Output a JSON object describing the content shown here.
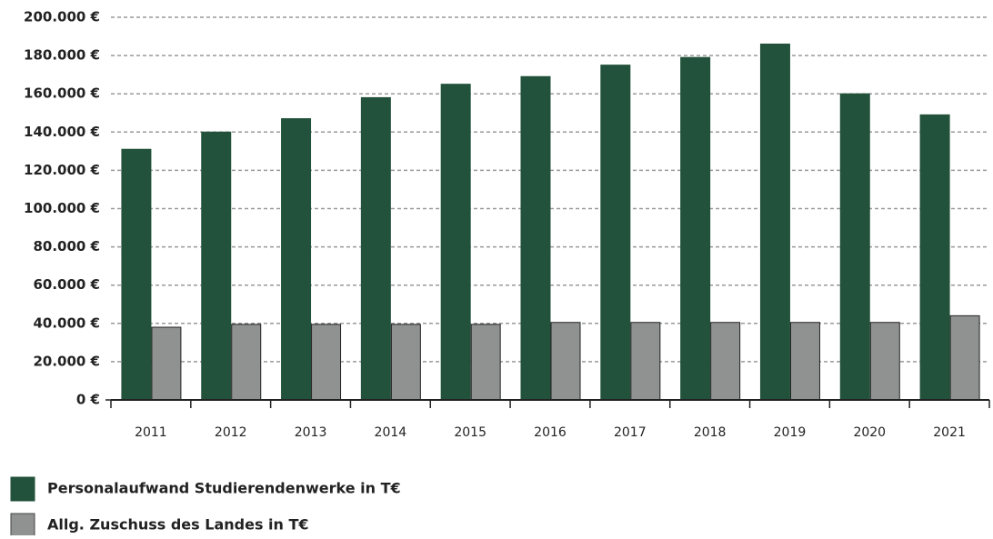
{
  "chart_data": {
    "type": "bar",
    "categories": [
      "2011",
      "2012",
      "2013",
      "2014",
      "2015",
      "2016",
      "2017",
      "2018",
      "2019",
      "2020",
      "2021"
    ],
    "series": [
      {
        "name": "Personalaufwand Studierendenwerke in T€",
        "color": "#22523b",
        "values": [
          131000,
          140000,
          147000,
          158000,
          165000,
          169000,
          175000,
          179000,
          186000,
          160000,
          149000
        ]
      },
      {
        "name": "Allg. Zuschuss des Landes in T€",
        "color": "#8f9291",
        "values": [
          38000,
          39500,
          39500,
          39500,
          39500,
          40500,
          40500,
          40500,
          40500,
          40500,
          44000
        ]
      }
    ],
    "ylim": [
      0,
      200000
    ],
    "yticks": [
      {
        "value": 0,
        "label": "0 €"
      },
      {
        "value": 20000,
        "label": "20.000 €"
      },
      {
        "value": 40000,
        "label": "40.000 €"
      },
      {
        "value": 60000,
        "label": "60.000 €"
      },
      {
        "value": 80000,
        "label": "80.000 €"
      },
      {
        "value": 100000,
        "label": "100.000 €"
      },
      {
        "value": 120000,
        "label": "120.000 €"
      },
      {
        "value": 140000,
        "label": "140.000 €"
      },
      {
        "value": 160000,
        "label": "160.000 €"
      },
      {
        "value": 180000,
        "label": "180.000 €"
      },
      {
        "value": 200000,
        "label": "200.000 €"
      }
    ],
    "grid": true
  }
}
